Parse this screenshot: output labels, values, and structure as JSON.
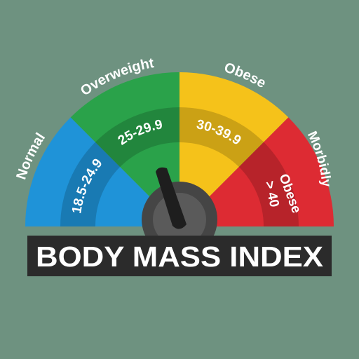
{
  "title": "BODY MASS INDEX",
  "colors": {
    "background": "#6e9280",
    "banner": "#2b2b2b",
    "normal": "#1f93d8",
    "overweight": "#2aa24a",
    "obese": "#f5c21a",
    "morbidly_obese": "#dd2b33",
    "hub": "#4a4a4a",
    "needle": "#1e1e1e"
  },
  "segments": [
    {
      "name": "Normal",
      "range": "18.5-24.9",
      "color": "#1f93d8"
    },
    {
      "name": "Overweight",
      "range": "25-29.9",
      "color": "#2aa24a"
    },
    {
      "name": "Obese",
      "range": "30-39.9",
      "color": "#f5c21a"
    },
    {
      "name": "Morbidly Obese",
      "name_lines": [
        "Morbidly",
        "Obese"
      ],
      "range": "> 40",
      "color": "#dd2b33"
    }
  ],
  "needle": {
    "pointing_to": "Overweight",
    "icon": "gauge-needle-icon"
  }
}
